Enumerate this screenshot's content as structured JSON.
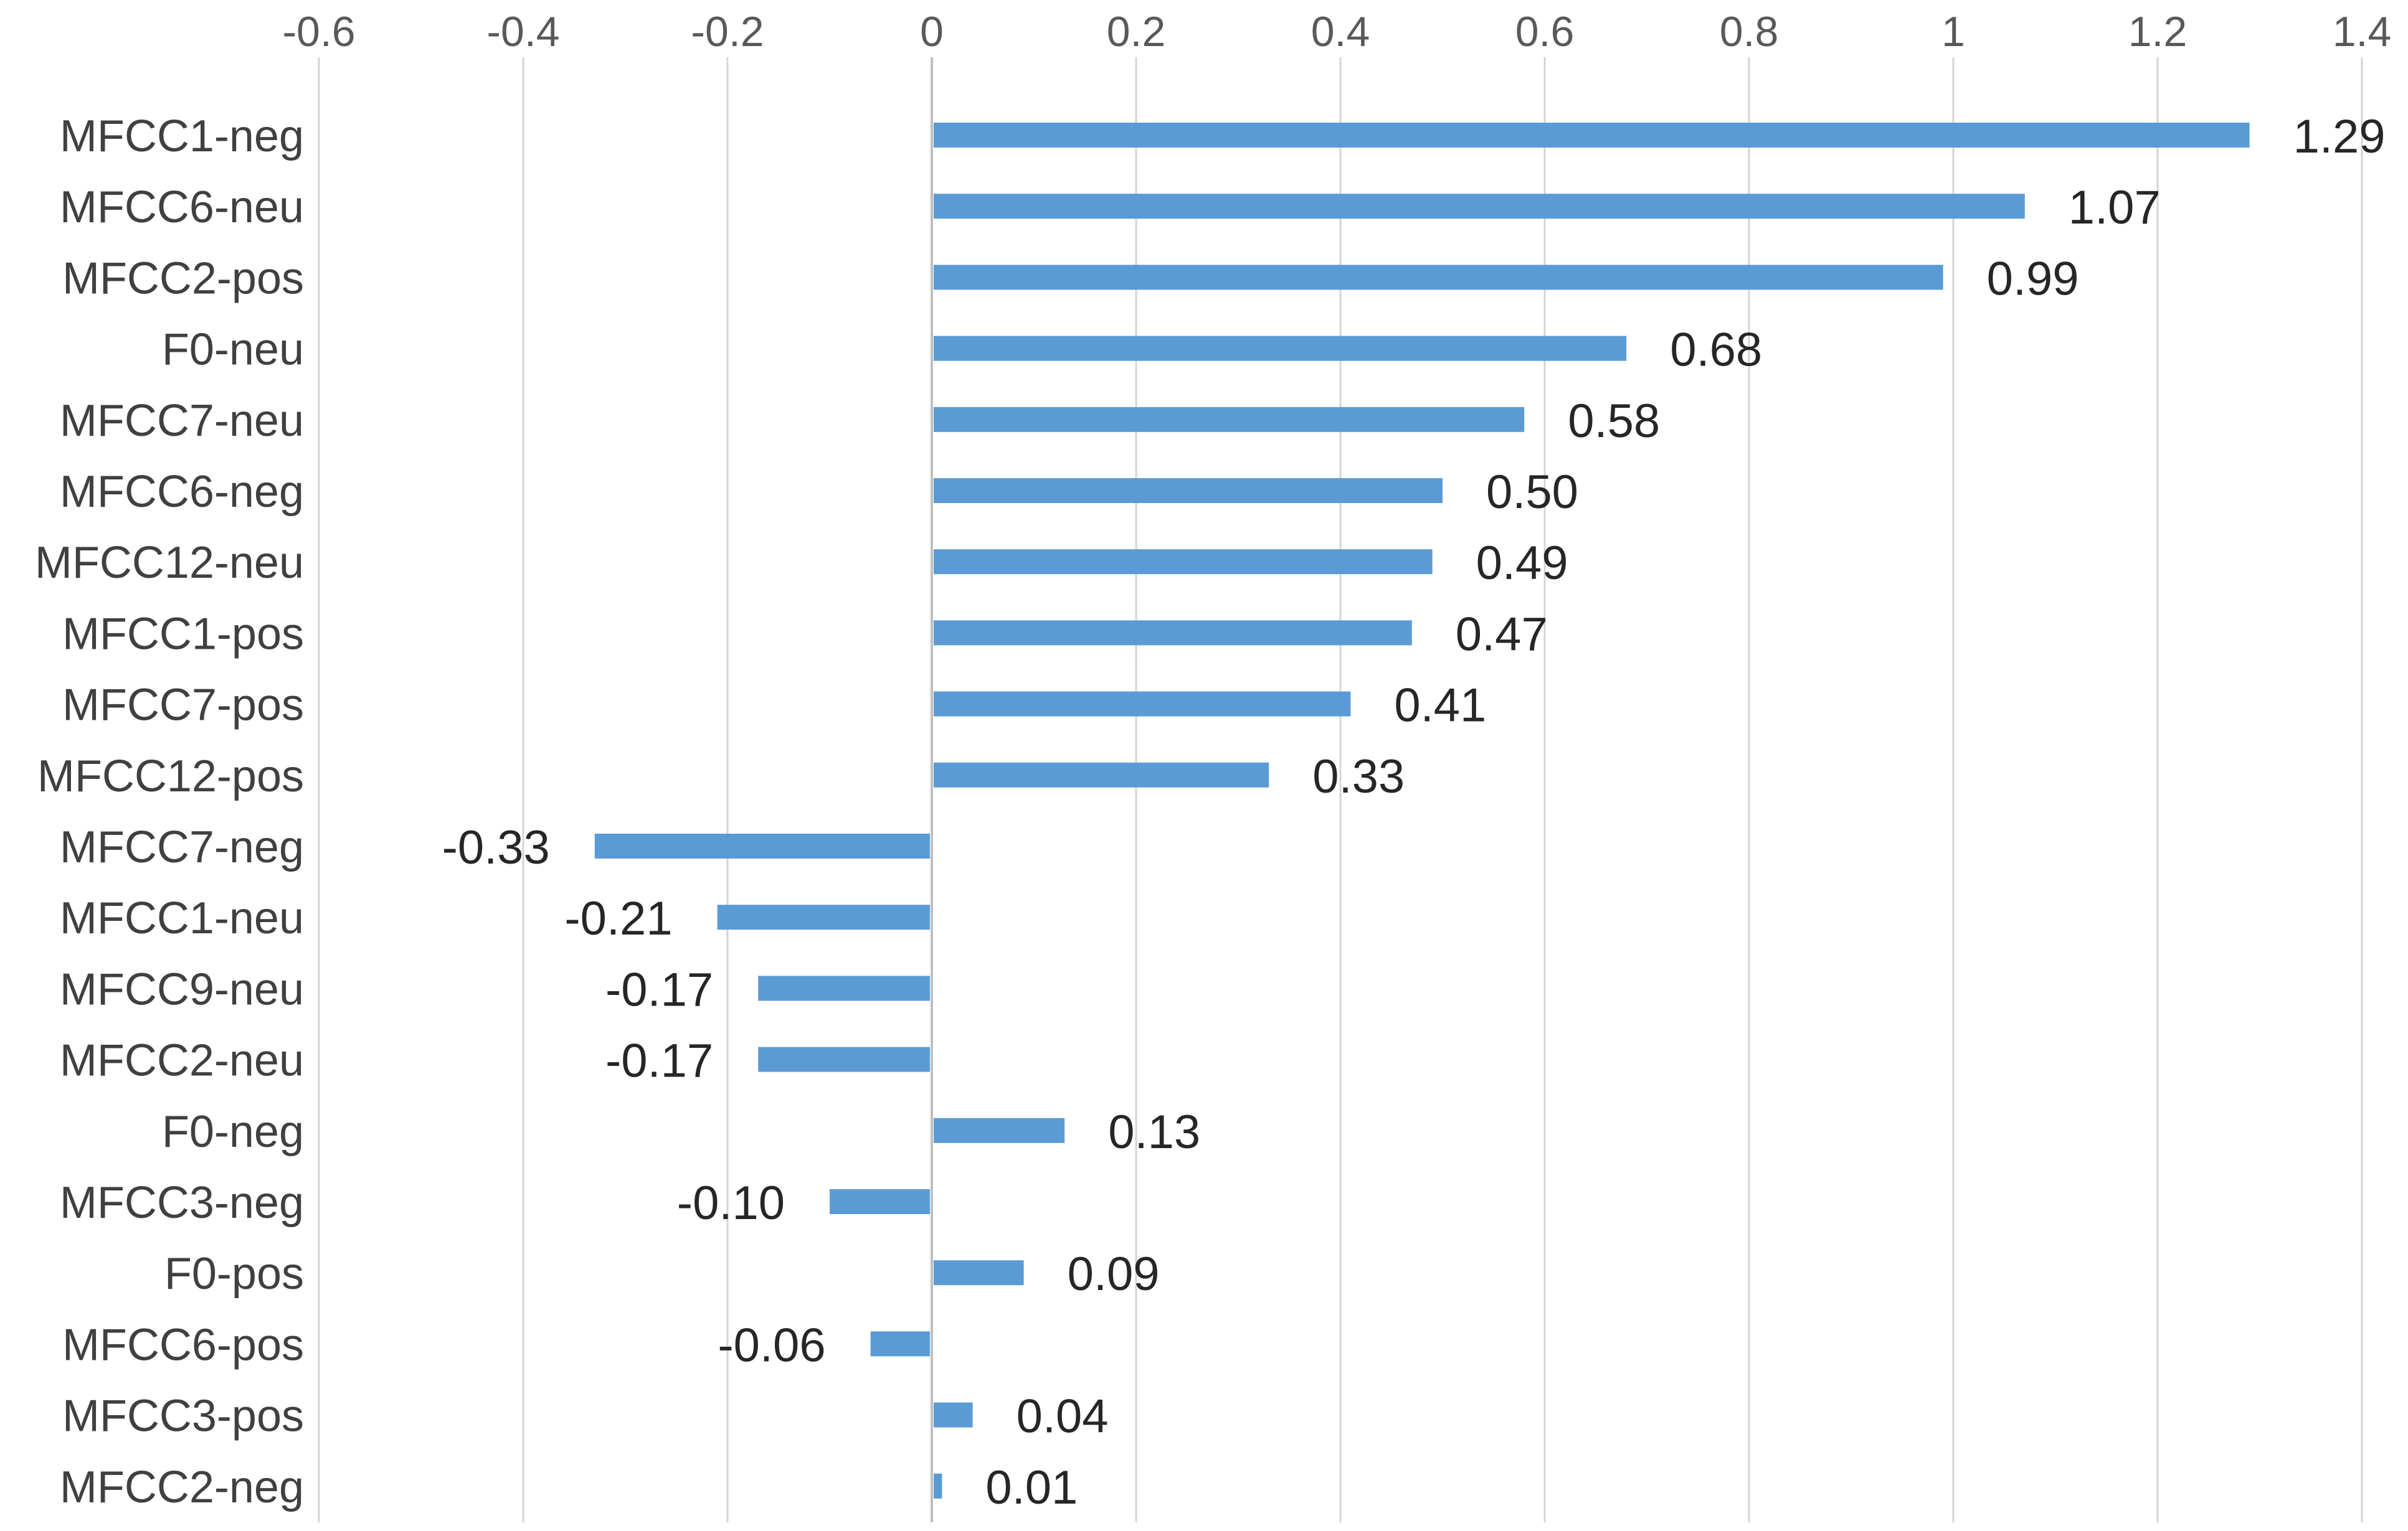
{
  "chart_data": {
    "type": "bar",
    "orientation": "horizontal",
    "title": "",
    "xlabel": "",
    "ylabel": "",
    "xlim": [
      -0.6,
      1.4
    ],
    "x_ticks": [
      -0.6,
      -0.4,
      -0.2,
      0,
      0.2,
      0.4,
      0.6,
      0.8,
      1,
      1.2,
      1.4
    ],
    "x_tick_labels": [
      "-0.6",
      "-0.4",
      "-0.2",
      "0",
      "0.2",
      "0.4",
      "0.6",
      "0.8",
      "1",
      "1.2",
      "1.4"
    ],
    "x_axis_position": "top",
    "grid": true,
    "legend": "none",
    "categories": [
      "MFCC1-neg",
      "MFCC6-neu",
      "MFCC2-pos",
      "F0-neu",
      "MFCC7-neu",
      "MFCC6-neg",
      "MFCC12-neu",
      "MFCC1-pos",
      "MFCC7-pos",
      "MFCC12-pos",
      "MFCC7-neg",
      "MFCC1-neu",
      "MFCC9-neu",
      "MFCC2-neu",
      "F0-neg",
      "MFCC3-neg",
      "F0-pos",
      "MFCC6-pos",
      "MFCC3-pos",
      "MFCC2-neg"
    ],
    "values": [
      1.29,
      1.07,
      0.99,
      0.68,
      0.58,
      0.5,
      0.49,
      0.47,
      0.41,
      0.33,
      -0.33,
      -0.21,
      -0.17,
      -0.17,
      0.13,
      -0.1,
      0.09,
      -0.06,
      0.04,
      0.01
    ],
    "value_labels": [
      "1.29",
      "1.07",
      "0.99",
      "0.68",
      "0.58",
      "0.50",
      "0.49",
      "0.47",
      "0.41",
      "0.33",
      "-0.33",
      "-0.21",
      "-0.17",
      "-0.17",
      "0.13",
      "-0.10",
      "0.09",
      "-0.06",
      "0.04",
      "0.01"
    ],
    "colors": {
      "bar": "#5b9bd5",
      "grid": "#d4d4d4",
      "axis": "#bfbfbf",
      "tick_text": "#595959",
      "category_text": "#404040",
      "value_text": "#262626"
    }
  }
}
